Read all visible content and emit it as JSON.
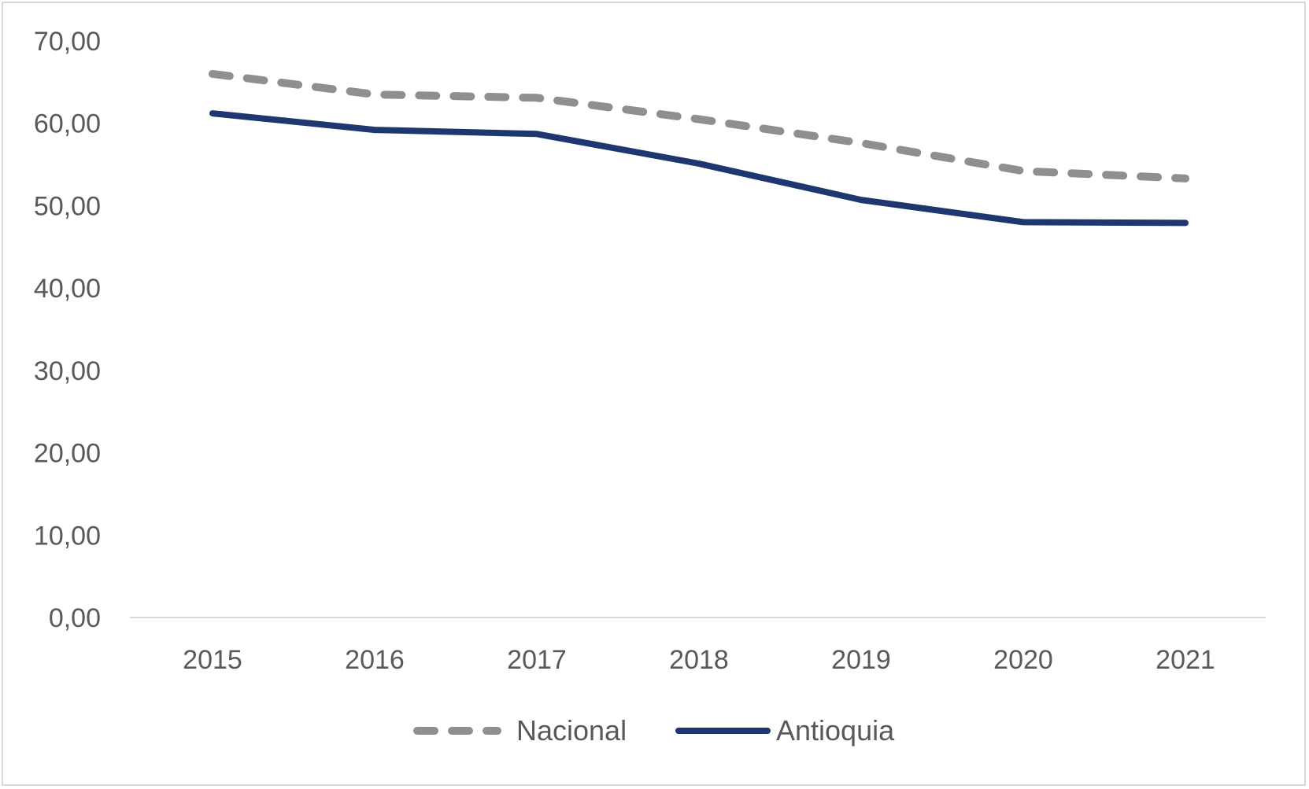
{
  "chart_data": {
    "type": "line",
    "title": "",
    "xlabel": "",
    "ylabel": "",
    "categories": [
      "2015",
      "2016",
      "2017",
      "2018",
      "2019",
      "2020",
      "2021"
    ],
    "ylim": [
      0,
      70
    ],
    "y_ticks": [
      "0,00",
      "10,00",
      "20,00",
      "30,00",
      "40,00",
      "50,00",
      "60,00",
      "70,00"
    ],
    "grid": false,
    "legend_position": "bottom",
    "series": [
      {
        "name": "Nacional",
        "values": [
          66.0,
          63.5,
          63.1,
          60.5,
          57.6,
          54.2,
          53.3
        ],
        "color": "#8f8f8f",
        "style": "dashed"
      },
      {
        "name": "Antioquia",
        "values": [
          61.2,
          59.2,
          58.7,
          55.1,
          50.7,
          48.0,
          47.9
        ],
        "color": "#1f3770",
        "style": "solid"
      }
    ]
  }
}
